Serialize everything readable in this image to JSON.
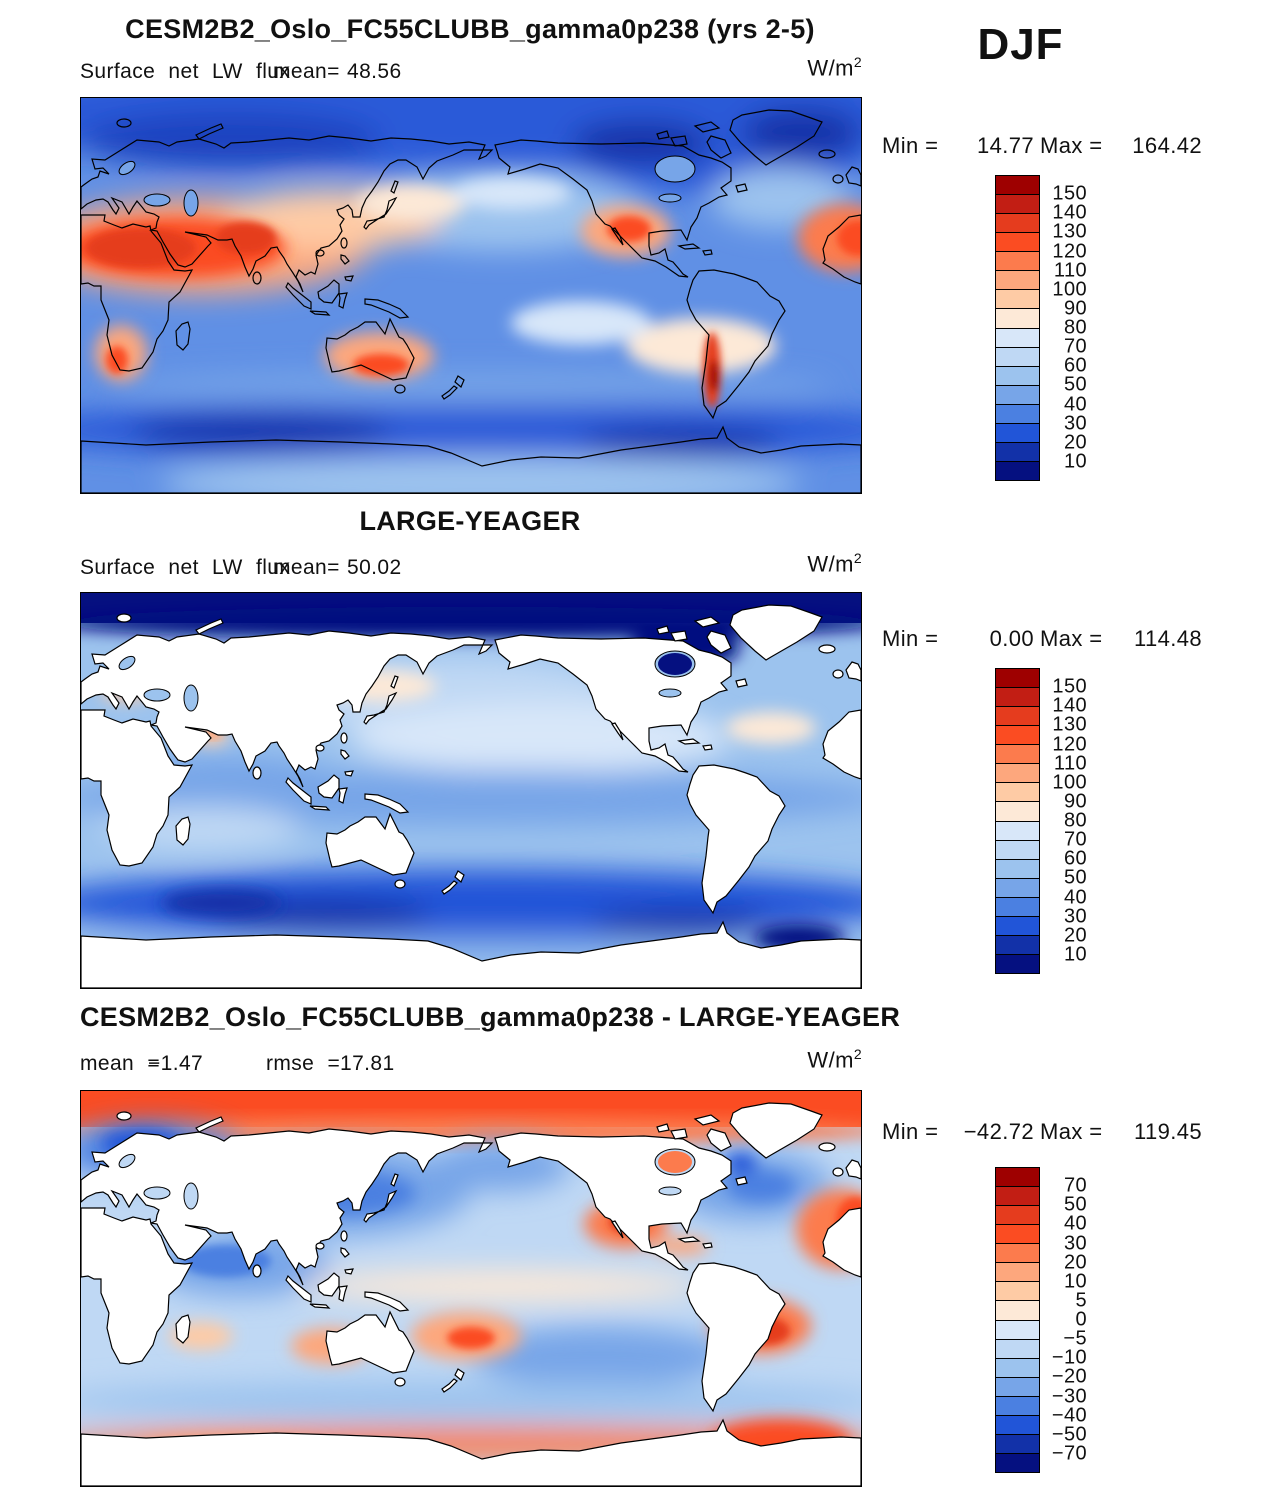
{
  "season_label": "DJF",
  "unit": {
    "base": "W/m",
    "exp": "2"
  },
  "panels": [
    {
      "title": "CESM2B2_Oslo_FC55CLUBB_gamma0p238 (yrs 2-5)",
      "left_label": "Surface net LW flux",
      "stat1_label": "mean=",
      "stat1_value": "48.56",
      "min_label": "Min =",
      "min_value": "14.77",
      "max_label": "Max =",
      "max_value": "164.42"
    },
    {
      "title": "LARGE-YEAGER",
      "left_label": "Surface net LW flux",
      "stat1_label": "mean=",
      "stat1_value": "50.02",
      "min_label": "Min =",
      "min_value": "0.00",
      "max_label": "Max =",
      "max_value": "114.48"
    },
    {
      "title": "CESM2B2_Oslo_FC55CLUBB_gamma0p238 - LARGE-YEAGER",
      "stat1_label": "mean =",
      "stat1_value": "−1.47",
      "stat2_label": "rmse =",
      "stat2_value": "17.81",
      "min_label": "Min =",
      "min_value": "−42.72",
      "max_label": "Max =",
      "max_value": "119.45"
    }
  ],
  "colorbars": [
    {
      "tick_labels": [
        "150",
        "140",
        "130",
        "120",
        "110",
        "100",
        "90",
        "80",
        "70",
        "60",
        "50",
        "40",
        "30",
        "20",
        "10"
      ],
      "colors": [
        "#9e0000",
        "#c21e14",
        "#e53c1e",
        "#fb4c22",
        "#fc7b4d",
        "#fda77d",
        "#fecba5",
        "#fde9d7",
        "#d8e7f9",
        "#bfd8f4",
        "#9cc3ee",
        "#77a5e8",
        "#4b80e1",
        "#2155d8",
        "#1231a8",
        "#051080"
      ]
    },
    {
      "tick_labels": [
        "150",
        "140",
        "130",
        "120",
        "110",
        "100",
        "90",
        "80",
        "70",
        "60",
        "50",
        "40",
        "30",
        "20",
        "10"
      ],
      "colors": [
        "#9e0000",
        "#c21e14",
        "#e53c1e",
        "#fb4c22",
        "#fc7b4d",
        "#fda77d",
        "#fecba5",
        "#fde9d7",
        "#d8e7f9",
        "#bfd8f4",
        "#9cc3ee",
        "#77a5e8",
        "#4b80e1",
        "#2155d8",
        "#1231a8",
        "#051080"
      ]
    },
    {
      "tick_labels": [
        "70",
        "50",
        "40",
        "30",
        "20",
        "10",
        "5",
        "0",
        "−5",
        "−10",
        "−20",
        "−30",
        "−40",
        "−50",
        "−70"
      ],
      "colors": [
        "#9e0000",
        "#c21e14",
        "#e53c1e",
        "#fb4c22",
        "#fc7b4d",
        "#fda77d",
        "#fecba5",
        "#fde9d7",
        "#d8e7f9",
        "#bfd8f4",
        "#9cc3ee",
        "#77a5e8",
        "#4b80e1",
        "#2155d8",
        "#1231a8",
        "#051080"
      ]
    }
  ],
  "chart_data": [
    {
      "type": "heatmap",
      "panel": "top",
      "title": "CESM2B2_Oslo_FC55CLUBB_gamma0p238 (yrs 2-5)",
      "variable": "Surface net LW flux",
      "season": "DJF",
      "units": "W/m^2",
      "mean": 48.56,
      "min": 14.77,
      "max": 164.42,
      "contour_levels": [
        10,
        20,
        30,
        40,
        50,
        60,
        70,
        80,
        90,
        100,
        110,
        120,
        130,
        140,
        150
      ],
      "palette_low_to_high": [
        "#051080",
        "#1231a8",
        "#2155d8",
        "#4b80e1",
        "#77a5e8",
        "#9cc3ee",
        "#bfd8f4",
        "#d8e7f9",
        "#fde9d7",
        "#fecba5",
        "#fda77d",
        "#fc7b4d",
        "#fb4c22",
        "#e53c1e",
        "#c21e14",
        "#9e0000"
      ],
      "projection": "global cylindrical equidistant, 0-360E",
      "notes": "model field shown over both land and ocean; high values over Sahara-Arabia-India, SW North America, Australia, Andes; low values over high latitudes"
    },
    {
      "type": "heatmap",
      "panel": "middle",
      "title": "LARGE-YEAGER",
      "variable": "Surface net LW flux",
      "season": "DJF",
      "units": "W/m^2",
      "mean": 50.02,
      "min": 0.0,
      "max": 114.48,
      "contour_levels": [
        10,
        20,
        30,
        40,
        50,
        60,
        70,
        80,
        90,
        100,
        110,
        120,
        130,
        140,
        150
      ],
      "palette_low_to_high": [
        "#051080",
        "#1231a8",
        "#2155d8",
        "#4b80e1",
        "#77a5e8",
        "#9cc3ee",
        "#bfd8f4",
        "#d8e7f9",
        "#fde9d7",
        "#fecba5",
        "#fda77d",
        "#fc7b4d",
        "#fb4c22",
        "#e53c1e",
        "#c21e14",
        "#9e0000"
      ],
      "projection": "global cylindrical equidistant, 0-360E",
      "notes": "observational ocean-only field; land masked white; near-zero values in Arctic strip"
    },
    {
      "type": "heatmap",
      "panel": "bottom",
      "kind": "difference",
      "title": "CESM2B2_Oslo_FC55CLUBB_gamma0p238 - LARGE-YEAGER",
      "variable": "Surface net LW flux difference",
      "season": "DJF",
      "units": "W/m^2",
      "mean": -1.47,
      "rmse": 17.81,
      "min": -42.72,
      "max": 119.45,
      "contour_levels": [
        -70,
        -50,
        -40,
        -30,
        -20,
        -10,
        -5,
        0,
        5,
        10,
        20,
        30,
        40,
        50,
        70
      ],
      "palette_low_to_high": [
        "#051080",
        "#1231a8",
        "#2155d8",
        "#4b80e1",
        "#77a5e8",
        "#9cc3ee",
        "#bfd8f4",
        "#d8e7f9",
        "#fde9d7",
        "#fecba5",
        "#fda77d",
        "#fc7b4d",
        "#fb4c22",
        "#e53c1e",
        "#c21e14",
        "#9e0000"
      ],
      "projection": "global cylindrical equidistant, 0-360E",
      "notes": "positive (orange) in Arctic strip, around Antarctica, off Mexico, subtropical S Pacific/S Atlantic; negative (blue) over N Pacific, N Atlantic, Indian Ocean"
    }
  ]
}
